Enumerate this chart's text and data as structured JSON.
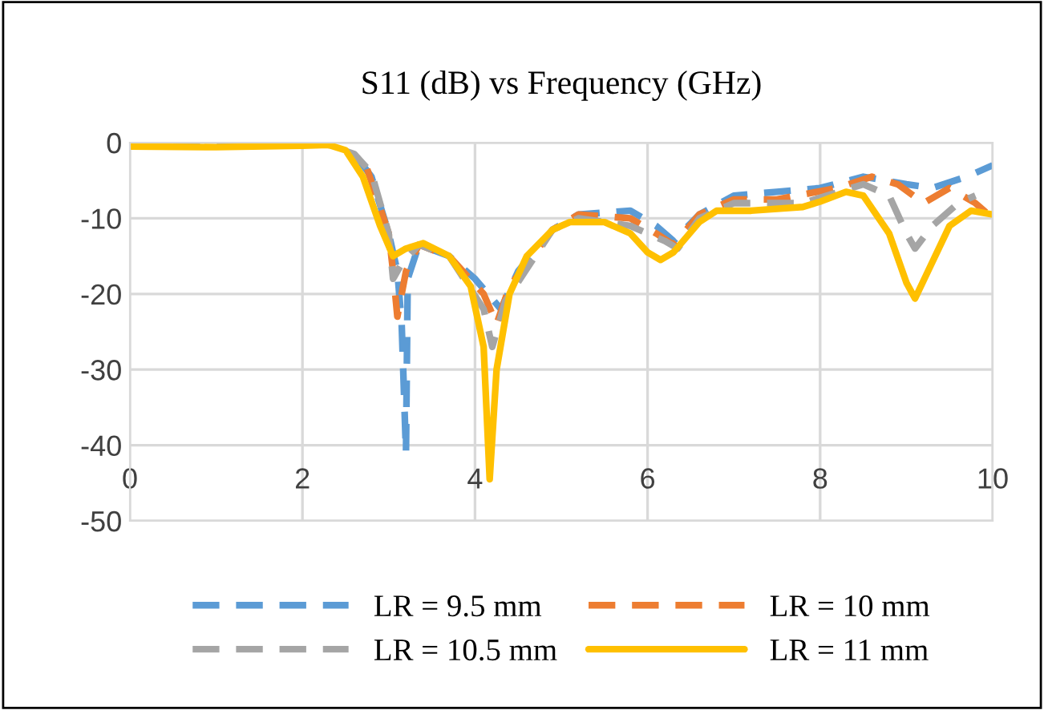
{
  "chart_data": {
    "type": "line",
    "title": "S11 (dB) vs Frequency (GHz)",
    "xlim": [
      0,
      10
    ],
    "ylim": [
      -50,
      0
    ],
    "xticks": [
      0,
      2,
      4,
      6,
      8,
      10
    ],
    "yticks": [
      0,
      -10,
      -20,
      -30,
      -40,
      -50
    ],
    "grid": true,
    "legend": "bottom",
    "series": [
      {
        "name": "LR = 9.5 mm",
        "color": "#5b9bd5",
        "line_style": "dashed",
        "x": [
          2.65,
          2.8,
          3.0,
          3.1,
          3.15,
          3.2,
          3.22,
          3.35,
          3.7,
          4.0,
          4.3,
          4.5,
          4.9,
          5.2,
          5.8,
          6.1,
          6.3,
          6.6,
          7.0,
          7.5,
          8.0,
          8.5,
          9.0,
          9.3,
          9.7,
          10
        ],
        "values": [
          -2.2,
          -4.5,
          -12,
          -17,
          -24,
          -41,
          -18,
          -13.5,
          -15,
          -18,
          -22,
          -17,
          -11.5,
          -9.5,
          -9,
          -11,
          -13,
          -9.5,
          -7,
          -6.5,
          -6,
          -4.5,
          -5.5,
          -6,
          -4.5,
          -3
        ]
      },
      {
        "name": "LR = 10 mm",
        "color": "#ed7d31",
        "line_style": "dashed",
        "x": [
          2.75,
          3.0,
          3.05,
          3.1,
          3.2,
          3.35,
          3.7,
          4.1,
          4.25,
          4.4,
          4.9,
          5.2,
          5.8,
          6.1,
          6.3,
          6.6,
          7.0,
          7.5,
          8.2,
          8.6,
          8.9,
          9.2,
          9.5,
          9.8,
          10
        ],
        "values": [
          -3.5,
          -12,
          -17,
          -23,
          -17,
          -13.5,
          -15,
          -20,
          -24,
          -19,
          -11.5,
          -9.5,
          -10,
          -12,
          -13.5,
          -9.5,
          -7.5,
          -7.5,
          -6,
          -4.5,
          -5.5,
          -8,
          -6,
          -8,
          -10
        ]
      },
      {
        "name": "LR = 10.5 mm",
        "color": "#a5a5a5",
        "line_style": "dashed",
        "x": [
          0,
          1,
          2,
          2.3,
          2.6,
          2.8,
          3.0,
          3.05,
          3.15,
          3.35,
          3.7,
          4.1,
          4.2,
          4.35,
          4.9,
          5.2,
          5.8,
          6.2,
          6.35,
          6.6,
          7.0,
          7.8,
          8.5,
          8.8,
          9.0,
          9.1,
          9.3,
          9.6,
          9.8
        ],
        "values": [
          -0.3,
          -0.4,
          -0.3,
          -0.3,
          -1.5,
          -4,
          -12,
          -18,
          -16,
          -13.5,
          -15,
          -22,
          -27,
          -21,
          -11.5,
          -10,
          -11,
          -13,
          -14,
          -10,
          -8,
          -8,
          -5.5,
          -7,
          -12,
          -14,
          -11,
          -8,
          -7
        ]
      },
      {
        "name": "LR = 11 mm",
        "color": "#ffc000",
        "line_style": "solid",
        "x": [
          0,
          1,
          2,
          2.3,
          2.5,
          2.7,
          2.9,
          3.05,
          3.2,
          3.4,
          3.7,
          3.95,
          4.1,
          4.17,
          4.25,
          4.4,
          4.6,
          4.9,
          5.1,
          5.5,
          5.8,
          6.0,
          6.15,
          6.3,
          6.6,
          6.8,
          7.2,
          7.8,
          8.0,
          8.3,
          8.5,
          8.8,
          9.0,
          9.1,
          9.25,
          9.5,
          9.75,
          10
        ],
        "values": [
          -0.5,
          -0.6,
          -0.4,
          -0.3,
          -1,
          -4.5,
          -11,
          -15,
          -14,
          -13.3,
          -15,
          -19,
          -27,
          -44.5,
          -30,
          -20,
          -15,
          -11.5,
          -10.5,
          -10.5,
          -12,
          -14.5,
          -15.5,
          -14.5,
          -10.5,
          -9,
          -9,
          -8.5,
          -7.8,
          -6.5,
          -7,
          -12,
          -18.5,
          -20.6,
          -17,
          -11,
          -9,
          -9.5
        ]
      }
    ]
  }
}
